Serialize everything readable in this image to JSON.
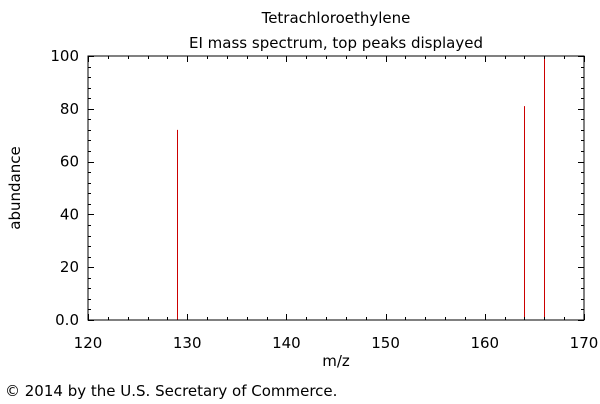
{
  "chart_data": {
    "type": "bar",
    "title": "Tetrachloroethylene",
    "subtitle": "EI mass spectrum, top peaks displayed",
    "xlabel": "m/z",
    "ylabel": "abundance",
    "xlim": [
      120,
      170
    ],
    "ylim": [
      0,
      100
    ],
    "x_ticks": [
      "120",
      "130",
      "140",
      "150",
      "160",
      "170"
    ],
    "y_ticks": [
      "0.0",
      "20",
      "40",
      "60",
      "80",
      "100"
    ],
    "grid": false,
    "peak_color": "#cc0000",
    "peaks": [
      {
        "x": 129,
        "y": 72
      },
      {
        "x": 164,
        "y": 81
      },
      {
        "x": 166,
        "y": 100
      }
    ]
  },
  "footer": {
    "copyright": "© 2014 by the U.S. Secretary of Commerce."
  }
}
